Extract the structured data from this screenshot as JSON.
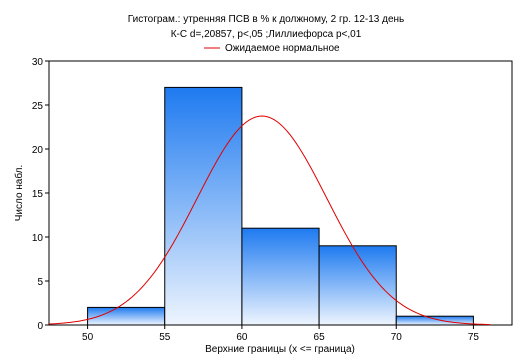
{
  "chart_data": {
    "type": "bar",
    "title": "Гистограм.: утренняя ПСВ в % к должному, 2 гр. 12-13 день",
    "subtitle": "К-С d=,20857, p<,05 ;Лиллиефорса p<,01",
    "legend": {
      "label": "Ожидаемое нормальное",
      "placement": "top-center"
    },
    "xlabel": "Верхние границы (x <= граница)",
    "ylabel": "Число набл.",
    "xlim": [
      47.5,
      77.5
    ],
    "ylim": [
      0,
      30
    ],
    "xticks": [
      "50",
      "55",
      "60",
      "65",
      "70",
      "75"
    ],
    "yticks": [
      "0",
      "5",
      "10",
      "15",
      "20",
      "25",
      "30"
    ],
    "bins": [
      {
        "from": 50,
        "to": 55,
        "count": 2
      },
      {
        "from": 55,
        "to": 60,
        "count": 27
      },
      {
        "from": 60,
        "to": 65,
        "count": 11
      },
      {
        "from": 65,
        "to": 70,
        "count": 9
      },
      {
        "from": 70,
        "to": 75,
        "count": 1
      }
    ],
    "normal_curve": {
      "mean": 61.3,
      "sd": 4.2,
      "n": 50,
      "bin_width": 5
    },
    "grid": false,
    "colors": {
      "bar_top": "#1e7af0",
      "bar_bottom": "#eef5fe",
      "curve": "#e00000"
    }
  }
}
